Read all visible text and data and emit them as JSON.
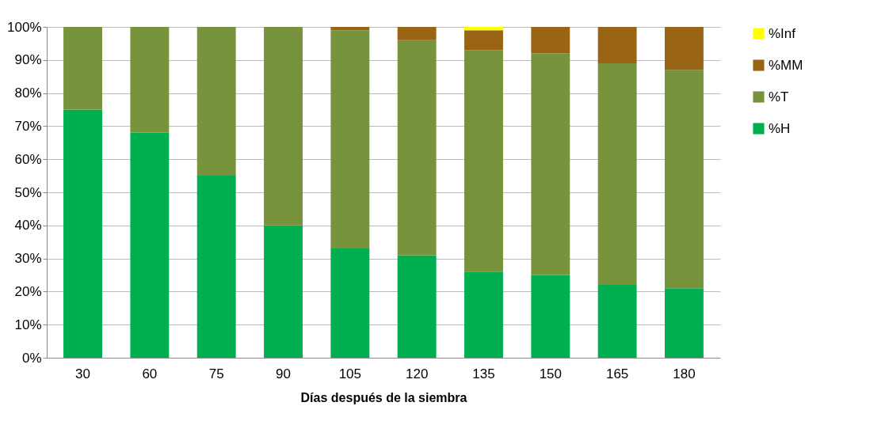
{
  "chart_data": {
    "type": "bar",
    "stacked": true,
    "xlabel": "Días después de la siembra",
    "categories": [
      "30",
      "60",
      "75",
      "90",
      "105",
      "120",
      "135",
      "150",
      "165",
      "180"
    ],
    "series": [
      {
        "name": "%H",
        "color": "#00b050",
        "values": [
          75,
          68,
          55,
          40,
          33,
          31,
          26,
          25,
          22,
          21
        ]
      },
      {
        "name": "%T",
        "color": "#77933c",
        "values": [
          25,
          32,
          45,
          60,
          66,
          65,
          67,
          67,
          67,
          66
        ]
      },
      {
        "name": "%MM",
        "color": "#996515",
        "values": [
          0,
          0,
          0,
          0,
          1,
          4,
          6,
          8,
          11,
          13
        ]
      },
      {
        "name": "%Inf",
        "color": "#ffff00",
        "values": [
          0,
          0,
          0,
          0,
          0,
          0,
          1,
          0,
          0,
          0
        ]
      }
    ],
    "ylim": [
      0,
      100
    ],
    "yticks": [
      {
        "value": 0,
        "label": "0%"
      },
      {
        "value": 10,
        "label": "10%"
      },
      {
        "value": 20,
        "label": "20%"
      },
      {
        "value": 30,
        "label": "30%"
      },
      {
        "value": 40,
        "label": "40%"
      },
      {
        "value": 50,
        "label": "50%"
      },
      {
        "value": 60,
        "label": "60%"
      },
      {
        "value": 70,
        "label": "70%"
      },
      {
        "value": 80,
        "label": "80%"
      },
      {
        "value": 90,
        "label": "90%"
      },
      {
        "value": 100,
        "label": "100%"
      }
    ],
    "grid": "y",
    "legend": "right"
  }
}
